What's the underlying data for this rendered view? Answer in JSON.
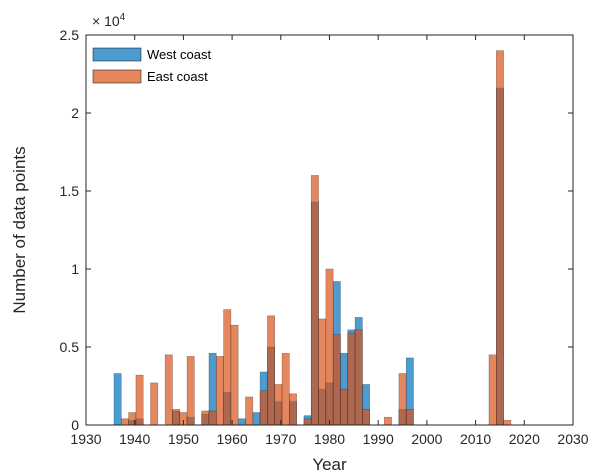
{
  "chart_data": {
    "type": "bar",
    "xlabel": "Year",
    "ylabel": "Number of data points",
    "y_exponent_label": "× 10^4",
    "xlim": [
      1930,
      2030
    ],
    "ylim": [
      0,
      25000
    ],
    "x_ticks": [
      1930,
      1940,
      1950,
      1960,
      1970,
      1980,
      1990,
      2000,
      2010,
      2020,
      2030
    ],
    "x_tick_labels": [
      "1930",
      "1940",
      "1950",
      "1960",
      "1970",
      "1980",
      "1990",
      "2000",
      "2010",
      "2020",
      "2030"
    ],
    "y_ticks": [
      0,
      5000,
      10000,
      15000,
      20000,
      25000
    ],
    "y_tick_labels": [
      "0",
      "0.5",
      "1",
      "1.5",
      "2",
      "2.5"
    ],
    "bin_width": 1.5,
    "bar_alpha": 0.7,
    "grid": false,
    "legend_position": "top-left",
    "series": [
      {
        "name": "West coast",
        "color": "#0072BD",
        "points": [
          [
            1936.5,
            3300
          ],
          [
            1939.5,
            300
          ],
          [
            1941,
            400
          ],
          [
            1948.5,
            900
          ],
          [
            1951.5,
            500
          ],
          [
            1954.5,
            700
          ],
          [
            1956,
            4600
          ],
          [
            1959,
            2100
          ],
          [
            1962,
            400
          ],
          [
            1965,
            800
          ],
          [
            1966.5,
            3400
          ],
          [
            1968,
            5000
          ],
          [
            1969.5,
            1500
          ],
          [
            1972.5,
            1500
          ],
          [
            1975.5,
            600
          ],
          [
            1977,
            14300
          ],
          [
            1978.5,
            2300
          ],
          [
            1980,
            2700
          ],
          [
            1981.5,
            9200
          ],
          [
            1983,
            4600
          ],
          [
            1984.5,
            6100
          ],
          [
            1986,
            6900
          ],
          [
            1987.5,
            2600
          ],
          [
            1995,
            1000
          ],
          [
            1996.5,
            4300
          ],
          [
            2015,
            21600
          ]
        ]
      },
      {
        "name": "East coast",
        "color": "#D95319",
        "points": [
          [
            1938,
            400
          ],
          [
            1939.5,
            800
          ],
          [
            1941,
            3200
          ],
          [
            1944,
            2700
          ],
          [
            1947,
            4500
          ],
          [
            1948.5,
            1000
          ],
          [
            1950,
            800
          ],
          [
            1951.5,
            4400
          ],
          [
            1954.5,
            900
          ],
          [
            1956,
            900
          ],
          [
            1957.5,
            4400
          ],
          [
            1959,
            7400
          ],
          [
            1960.5,
            6400
          ],
          [
            1963.5,
            1800
          ],
          [
            1966.5,
            2200
          ],
          [
            1968,
            7000
          ],
          [
            1969.5,
            2600
          ],
          [
            1971,
            4600
          ],
          [
            1972.5,
            2000
          ],
          [
            1975.5,
            400
          ],
          [
            1977,
            16000
          ],
          [
            1978.5,
            6800
          ],
          [
            1980,
            10000
          ],
          [
            1981.5,
            5800
          ],
          [
            1983,
            2300
          ],
          [
            1984.5,
            5900
          ],
          [
            1986,
            6100
          ],
          [
            1987.5,
            1000
          ],
          [
            1992,
            500
          ],
          [
            1995,
            3300
          ],
          [
            1996.5,
            1000
          ],
          [
            2013.5,
            4500
          ],
          [
            2015,
            24000
          ],
          [
            2016.5,
            300
          ]
        ]
      }
    ]
  }
}
